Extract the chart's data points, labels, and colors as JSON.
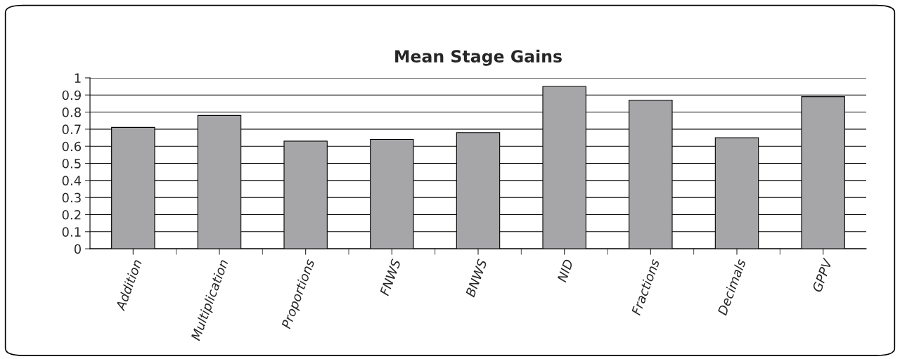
{
  "chart_data": {
    "type": "bar",
    "title": "Mean Stage Gains",
    "categories": [
      "Addition",
      "Multiplication",
      "Proportions",
      "FNWS",
      "BNWS",
      "NID",
      "Fractions",
      "Decimals",
      "GPPV"
    ],
    "values": [
      0.71,
      0.78,
      0.63,
      0.64,
      0.68,
      0.95,
      0.87,
      0.65,
      0.89
    ],
    "color": "#a6a6a9",
    "ylim": [
      0,
      1
    ],
    "yticks": [
      0,
      0.1,
      0.2,
      0.3,
      0.4,
      0.5,
      0.6,
      0.7,
      0.8,
      0.9,
      1
    ],
    "grid": "y"
  }
}
